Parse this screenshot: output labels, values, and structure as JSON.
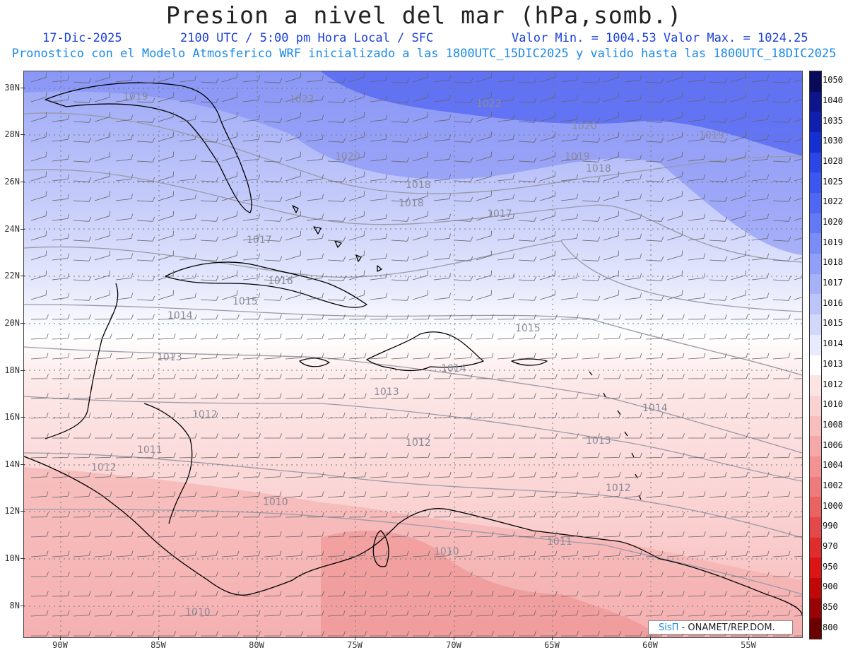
{
  "header": {
    "title": "Presion a nivel del mar (hPa,somb.)",
    "date": "17-Dic-2025",
    "time": "2100 UTC / 5:00 pm Hora Local / SFC",
    "minmax": "Valor Min. = 1004.53  Valor Max. = 1024.25",
    "model_line": "Pronostico con el Modelo Atmosferico WRF inicializado a las 1800UTC_15DIC2025 y valido hasta las  1800UTC_18DIC2025"
  },
  "colors": {
    "title": "#222222",
    "subtitle": "#1a3fd8",
    "model_line": "#1a8ae8",
    "land_border": "#000000",
    "isobar": "#9a9aa8",
    "grid": "#777777"
  },
  "map": {
    "lon_range": [
      -92,
      -52.5
    ],
    "lat_range": [
      6.8,
      30.8
    ],
    "lat_labels": [
      "30N",
      "28N",
      "26N",
      "24N",
      "22N",
      "20N",
      "18N",
      "16N",
      "14N",
      "12N",
      "10N",
      "8N"
    ],
    "lon_labels": [
      "90W",
      "85W",
      "80W",
      "75W",
      "70W",
      "65W",
      "60W",
      "55W"
    ],
    "isobar_labels": [
      "1022",
      "1022",
      "1020",
      "1019",
      "1020",
      "1019",
      "1018",
      "1018",
      "1019",
      "1018",
      "1017",
      "1017",
      "1016",
      "1015",
      "1014",
      "1014",
      "1015",
      "1013",
      "1013",
      "1014",
      "1012",
      "1012",
      "1013",
      "1012",
      "1011",
      "1012",
      "1010",
      "1010",
      "1010",
      "1011"
    ]
  },
  "colorbar": {
    "levels": [
      "1050",
      "1040",
      "1035",
      "1030",
      "1028",
      "1025",
      "1022",
      "1020",
      "1019",
      "1018",
      "1017",
      "1016",
      "1015",
      "1014",
      "1013",
      "1012",
      "1010",
      "1008",
      "1006",
      "1004",
      "1002",
      "1000",
      "990",
      "970",
      "950",
      "900",
      "850",
      "800"
    ],
    "colors": [
      "#0a0a5a",
      "#0d148c",
      "#0f1fb0",
      "#1530d0",
      "#2a46e6",
      "#3c56f0",
      "#4f68f4",
      "#6378f5",
      "#7a8cf6",
      "#909ff7",
      "#a6b2f8",
      "#bcc5fa",
      "#d2d8fb",
      "#e8ebfd",
      "#ffffff",
      "#fde4e4",
      "#fbd2d2",
      "#f8bebe",
      "#f5a8a8",
      "#f29292",
      "#ee7b7b",
      "#ea6262",
      "#e54848",
      "#e02c2c",
      "#dc1414",
      "#c00808",
      "#980404",
      "#6a0000"
    ]
  },
  "credit": {
    "logo": "SisΠ",
    "text": " - ONAMET/REP.DOM."
  }
}
